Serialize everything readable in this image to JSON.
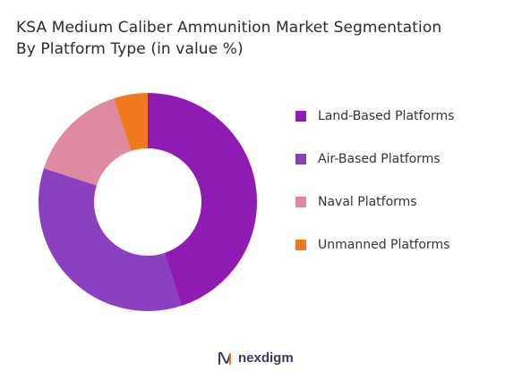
{
  "chart_data": {
    "type": "pie",
    "title_lines": [
      "KSA Medium Caliber Ammunition Market Segmentation",
      "By Platform Type (in value %)"
    ],
    "categories": [
      "Land-Based Platforms",
      "Air-Based Platforms",
      "Naval Platforms",
      "Unmanned Platforms"
    ],
    "values": [
      45,
      35,
      15,
      5
    ],
    "colors": [
      "#8e1cb3",
      "#8b40c0",
      "#de8ba2",
      "#f0781f"
    ],
    "donut": true,
    "legend_position": "right"
  },
  "footer": {
    "brand": "nexdigm"
  }
}
